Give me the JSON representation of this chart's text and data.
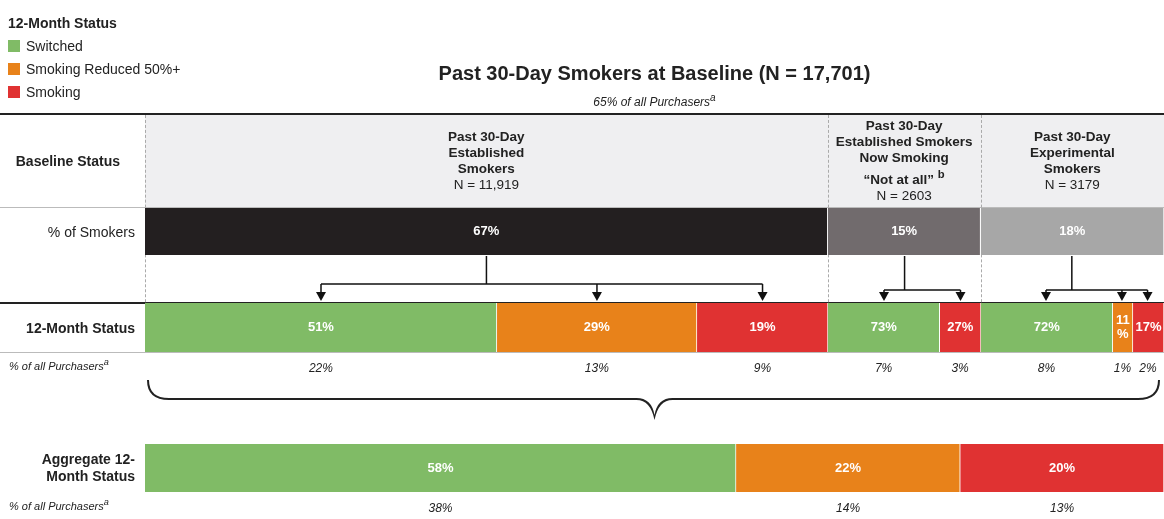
{
  "chart_data": [
    {
      "type": "bar",
      "orientation": "horizontal",
      "stacked": true,
      "title": "Past 30-Day Smokers at Baseline (N = 17,701)",
      "subtitle": "65% of all Purchasers$^{a}$",
      "ylabel": "Baseline Status",
      "categories": [
        "% of Smokers"
      ],
      "xlim": [
        0,
        100
      ],
      "legend": false,
      "series": [
        {
          "color": "#231f20",
          "values": [
            67
          ],
          "value_labels": [
            "67%"
          ]
        },
        {
          "color": "#716b6d",
          "values": [
            15
          ],
          "value_labels": [
            "15%"
          ]
        },
        {
          "color": "#a7a7a7",
          "values": [
            18
          ],
          "value_labels": [
            "18%"
          ]
        }
      ],
      "annotations": [
        "Past 30-Day\nEstablished\nSmokers\nN = 11,919",
        "Past 30-Day\nEstablished Smokers\nNow Smoking\n“Not at all” $^{b}$\nN = 2603",
        "Past 30-Day\nExperimental\nSmokers\nN = 3179"
      ]
    },
    {
      "type": "bar",
      "orientation": "horizontal",
      "stacked": true,
      "categories": [
        "12-Month Status"
      ],
      "xlabel": "% of all Purchasers$^{a}$",
      "xlim": [
        0,
        99
      ],
      "legend": false,
      "series": [
        {
          "color": "#80bb66",
          "values": [
            51
          ],
          "value_labels": [
            "51%"
          ]
        },
        {
          "color": "#e8821a",
          "values": [
            29
          ],
          "value_labels": [
            "29%"
          ]
        },
        {
          "color": "#e03232",
          "values": [
            19
          ],
          "value_labels": [
            "19%"
          ]
        }
      ],
      "annotations": [
        "22%",
        "13%",
        "9%"
      ]
    },
    {
      "type": "bar",
      "orientation": "horizontal",
      "stacked": true,
      "categories": [
        null
      ],
      "xlim": [
        0,
        100
      ],
      "legend": false,
      "series": [
        {
          "color": "#80bb66",
          "values": [
            73
          ],
          "value_labels": [
            "73%"
          ]
        },
        {
          "color": "#e03232",
          "values": [
            27
          ],
          "value_labels": [
            "27%"
          ]
        }
      ],
      "annotations": [
        "7%",
        "3%"
      ]
    },
    {
      "type": "bar",
      "orientation": "horizontal",
      "stacked": true,
      "categories": [
        null
      ],
      "xlim": [
        0,
        100
      ],
      "legend": false,
      "series": [
        {
          "color": "#80bb66",
          "values": [
            72
          ],
          "value_labels": [
            "72%"
          ]
        },
        {
          "color": "#e8821a",
          "values": [
            11
          ],
          "value_labels": [
            "11%"
          ]
        },
        {
          "color": "#e03232",
          "values": [
            17
          ],
          "value_labels": [
            "17%"
          ]
        }
      ],
      "annotations": [
        "8%",
        "1%",
        "2%"
      ]
    },
    {
      "type": "bar",
      "orientation": "horizontal",
      "stacked": true,
      "categories": [
        "Aggregate 12-Month Status"
      ],
      "xlabel": "% of all Purchasers$^{a}$",
      "xlim": [
        0,
        100
      ],
      "legend": "top left",
      "legend_title": "12-Month Status",
      "series": [
        {
          "name": "Switched",
          "color": "#80bb66",
          "values": [
            58
          ],
          "value_labels": [
            "58%"
          ]
        },
        {
          "name": "Smoking Reduced 50%+",
          "color": "#e8821a",
          "values": [
            22
          ],
          "value_labels": [
            "22%"
          ]
        },
        {
          "name": "Smoking",
          "color": "#e03232",
          "values": [
            20
          ],
          "value_labels": [
            "20%"
          ]
        }
      ],
      "annotations": [
        "38%",
        "14%",
        "13%"
      ]
    }
  ]
}
